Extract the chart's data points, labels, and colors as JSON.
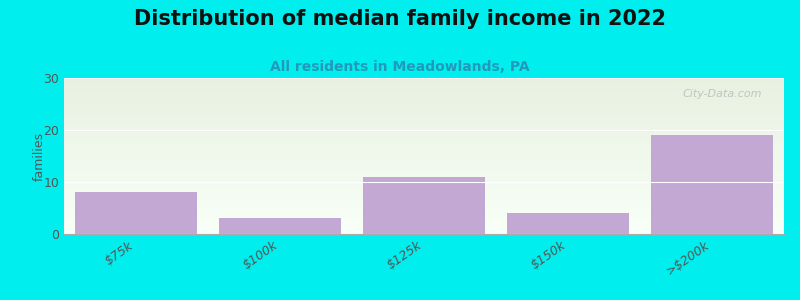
{
  "title": "Distribution of median family income in 2022",
  "subtitle": "All residents in Meadowlands, PA",
  "categories": [
    "$75k",
    "$100k",
    "$125k",
    "$150k",
    ">$200k"
  ],
  "values": [
    8,
    3,
    11,
    4,
    19
  ],
  "bar_color": "#C4A8D4",
  "ylabel": "families",
  "ylim": [
    0,
    30
  ],
  "yticks": [
    0,
    10,
    20,
    30
  ],
  "background_color": "#00EEEE",
  "plot_bg_top_color": "#E8F0E0",
  "plot_bg_bottom_color": "#F8FFF8",
  "title_fontsize": 15,
  "title_color": "#111111",
  "subtitle_fontsize": 10,
  "subtitle_color": "#2299BB",
  "watermark": "City-Data.com",
  "watermark_color": "#BBBBBB",
  "tick_color": "#555555",
  "spine_color": "#AAAAAA"
}
